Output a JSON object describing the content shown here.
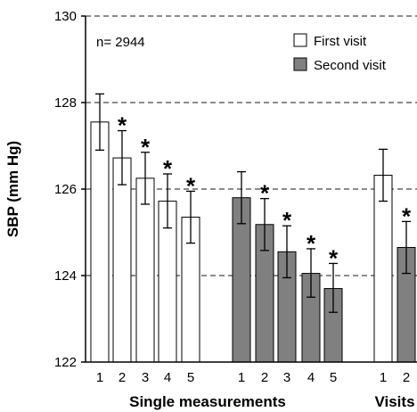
{
  "chart_data": {
    "type": "bar",
    "ylabel": "SBP (mm Hg)",
    "ylim": [
      122,
      130
    ],
    "yticks": [
      122,
      124,
      126,
      128,
      130
    ],
    "grid": "horizontal-dashed",
    "annotation": "n= 2944",
    "legend": {
      "placement": "top-right",
      "entries": [
        {
          "label": "First visit",
          "color": "#ffffff"
        },
        {
          "label": "Second visit",
          "color": "#808080"
        }
      ]
    },
    "groups": [
      {
        "label": "Single measurements",
        "bars": [
          {
            "x": "1",
            "series": "First visit",
            "value": 127.55,
            "err_low": 126.9,
            "err_high": 128.2,
            "star": false
          },
          {
            "x": "2",
            "series": "First visit",
            "value": 126.72,
            "err_low": 126.1,
            "err_high": 127.35,
            "star": true
          },
          {
            "x": "3",
            "series": "First visit",
            "value": 126.25,
            "err_low": 125.65,
            "err_high": 126.85,
            "star": true
          },
          {
            "x": "4",
            "series": "First visit",
            "value": 125.72,
            "err_low": 125.1,
            "err_high": 126.35,
            "star": true
          },
          {
            "x": "5",
            "series": "First visit",
            "value": 125.35,
            "err_low": 124.75,
            "err_high": 125.95,
            "star": true
          },
          {
            "x": "1",
            "series": "Second visit",
            "value": 125.8,
            "err_low": 125.2,
            "err_high": 126.4,
            "star": false
          },
          {
            "x": "2",
            "series": "Second visit",
            "value": 125.18,
            "err_low": 124.58,
            "err_high": 125.78,
            "star": true
          },
          {
            "x": "3",
            "series": "Second visit",
            "value": 124.55,
            "err_low": 123.95,
            "err_high": 125.15,
            "star": true
          },
          {
            "x": "4",
            "series": "Second visit",
            "value": 124.05,
            "err_low": 123.5,
            "err_high": 124.62,
            "star": true
          },
          {
            "x": "5",
            "series": "Second visit",
            "value": 123.7,
            "err_low": 123.15,
            "err_high": 124.28,
            "star": true
          }
        ]
      },
      {
        "label": "Visits",
        "bars": [
          {
            "x": "1",
            "series": "First visit",
            "value": 126.32,
            "err_low": 125.72,
            "err_high": 126.92,
            "star": false
          },
          {
            "x": "2",
            "series": "Second visit",
            "value": 124.65,
            "err_low": 124.05,
            "err_high": 125.25,
            "star": true
          }
        ]
      }
    ],
    "significance_marker": "*"
  }
}
